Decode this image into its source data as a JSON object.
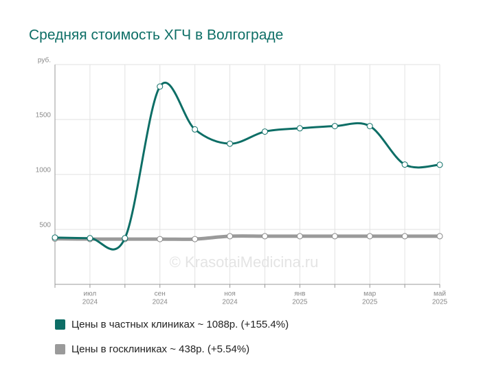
{
  "chart_data": {
    "type": "line",
    "title": "Средняя стоимость ХГЧ в Волгограде",
    "categories": [
      null,
      "июл",
      null,
      "сен",
      null,
      "ноя",
      null,
      "янв",
      null,
      "мар",
      null,
      "май"
    ],
    "category_years": [
      null,
      "2024",
      null,
      "2024",
      null,
      "2024",
      null,
      "2025",
      null,
      "2025",
      null,
      "2025"
    ],
    "series": [
      {
        "name": "Цены в частных клиниках ~ 1088р. (+155.4%)",
        "color": "#0d6e66",
        "values": [
          426,
          420,
          420,
          1800,
          1410,
          1280,
          1390,
          1420,
          1440,
          1440,
          1090,
          1088
        ]
      },
      {
        "name": "Цены в госклиниках ~ 438р. (+5.54%)",
        "color": "#9a9a9a",
        "values": [
          415,
          412,
          412,
          412,
          412,
          438,
          438,
          438,
          438,
          438,
          438,
          438
        ]
      }
    ],
    "ylim": [
      0,
      2000
    ],
    "yticks": [
      500,
      1000,
      1500,
      {
        "value": 2000,
        "label": "руб."
      }
    ],
    "grid": true,
    "annotation": "© KrasotaiMedicina.ru"
  }
}
